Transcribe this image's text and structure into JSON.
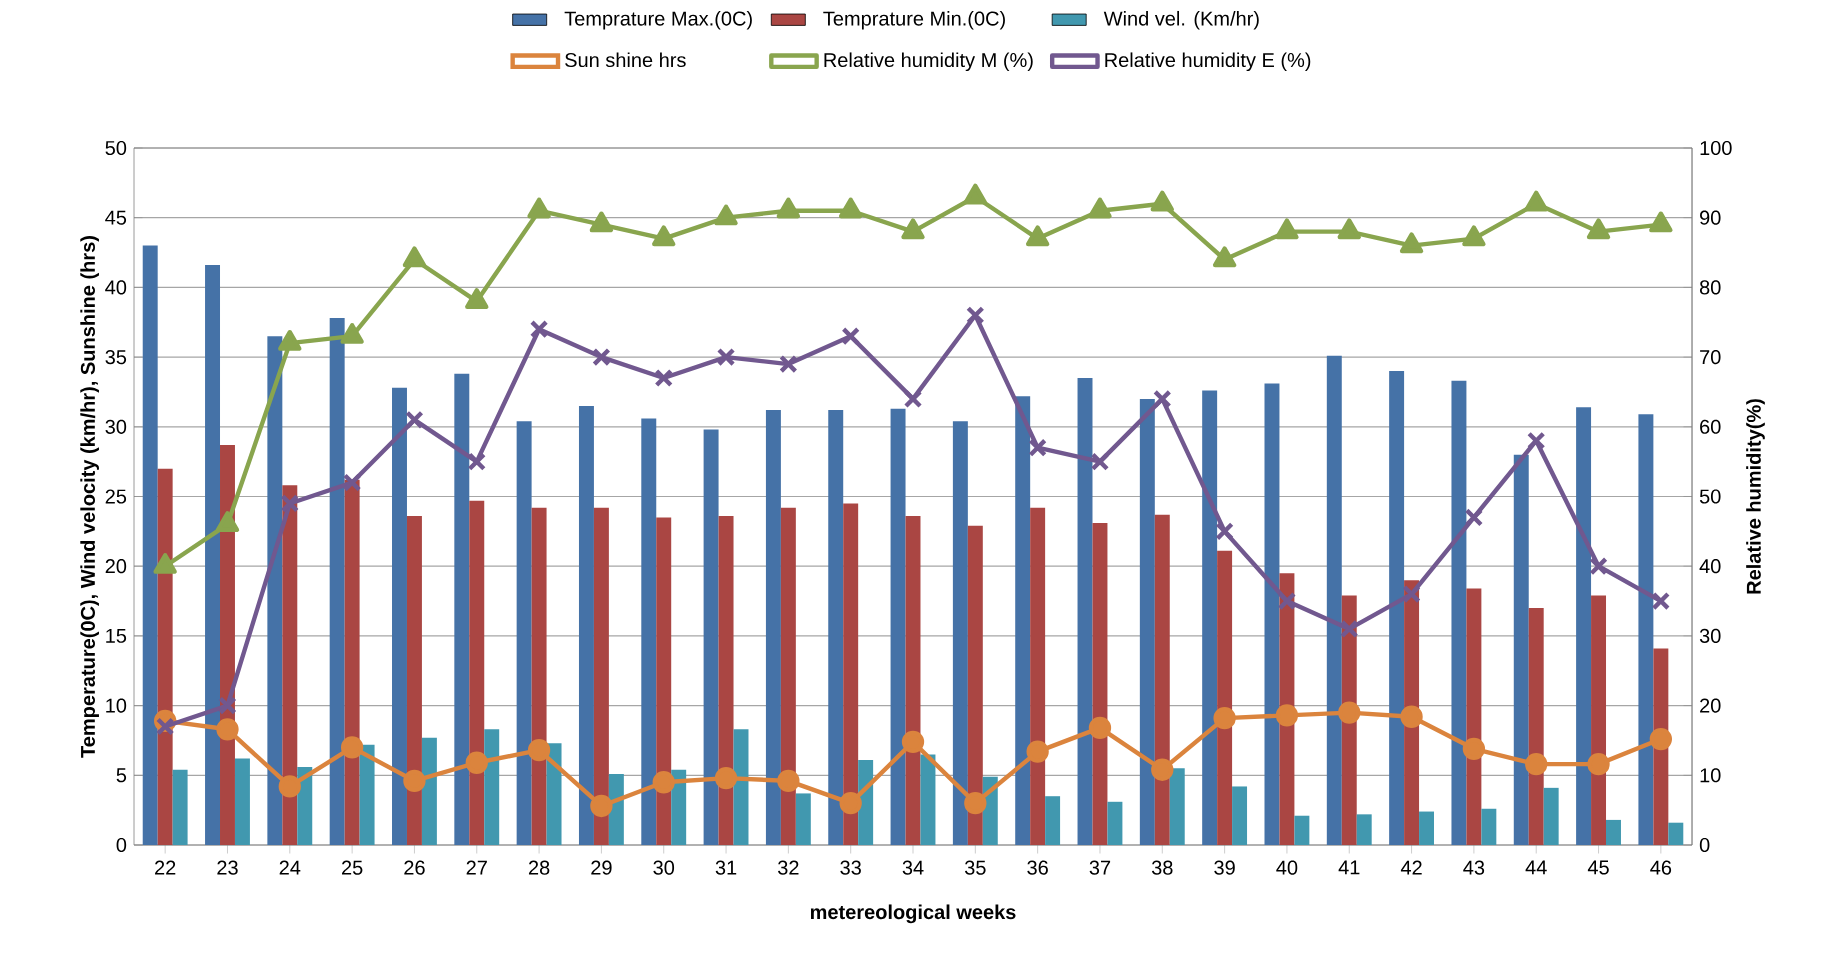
{
  "chart_data": {
    "type": "bar",
    "xlabel": "metereological weeks",
    "ylabel": "Temperature(0C), Wind velocity (km/hr), Sunshine (hrs)",
    "y2label": "Relative humidity(%)",
    "categories": [
      "22",
      "23",
      "24",
      "25",
      "26",
      "27",
      "28",
      "29",
      "30",
      "31",
      "32",
      "33",
      "34",
      "35",
      "36",
      "37",
      "38",
      "39",
      "40",
      "41",
      "42",
      "43",
      "44",
      "45",
      "46"
    ],
    "series": [
      {
        "name": "Temprature Max.(0C)",
        "color": "#4572a7",
        "values": [
          43,
          41.6,
          36.5,
          37.8,
          32.8,
          33.8,
          30.4,
          31.5,
          30.6,
          29.8,
          31.2,
          31.2,
          31.3,
          30.4,
          32.2,
          33.5,
          32.0,
          32.6,
          33.1,
          35.1,
          34.0,
          33.3,
          28.0,
          31.4,
          30.9
        ]
      },
      {
        "name": "Temprature Min.(0C)",
        "color": "#aa4643",
        "values": [
          27.0,
          28.7,
          25.8,
          26.2,
          23.6,
          24.7,
          24.2,
          24.2,
          23.5,
          23.6,
          24.2,
          24.5,
          23.6,
          22.9,
          24.2,
          23.1,
          23.7,
          21.1,
          19.5,
          17.9,
          19.0,
          18.4,
          17.0,
          17.9,
          14.1
        ]
      },
      {
        "name": "Wind vel. (Km/hr)",
        "color": "#4198af",
        "values": [
          5.4,
          6.2,
          5.6,
          7.2,
          7.7,
          8.3,
          7.3,
          5.1,
          5.4,
          8.3,
          3.7,
          6.1,
          6.5,
          4.9,
          3.5,
          3.1,
          5.5,
          4.2,
          2.1,
          2.2,
          2.4,
          2.6,
          4.1,
          1.8,
          1.6
        ]
      },
      {
        "name": "Sun shine hrs",
        "type": "line",
        "marker": "circle",
        "color": "#db843d",
        "values": [
          8.9,
          8.3,
          4.2,
          7.0,
          4.6,
          5.9,
          6.8,
          2.8,
          4.5,
          4.8,
          4.6,
          3.0,
          7.4,
          3.0,
          6.7,
          8.4,
          5.4,
          9.1,
          9.3,
          9.5,
          9.2,
          6.9,
          5.8,
          5.8,
          7.6
        ]
      },
      {
        "name": "Relative humidity M (%)",
        "type": "line",
        "marker": "triangle",
        "axis": "y2",
        "color": "#89a54e",
        "values": [
          40,
          46,
          72,
          73,
          84,
          78,
          91,
          89,
          87,
          90,
          91,
          91,
          88,
          93,
          87,
          91,
          92,
          84,
          88,
          88,
          86,
          87,
          92,
          88,
          89
        ]
      },
      {
        "name": "Relative humidity E (%)",
        "type": "line",
        "marker": "cross",
        "axis": "y2",
        "color": "#71588f",
        "values": [
          17,
          20,
          49,
          52,
          61,
          55,
          74,
          70,
          67,
          70,
          69,
          73,
          64,
          76,
          57,
          55,
          64,
          45,
          35,
          31,
          36,
          47,
          58,
          40,
          35
        ]
      }
    ],
    "ylim": [
      0,
      50
    ],
    "yticks": [
      0,
      5,
      10,
      15,
      20,
      25,
      30,
      35,
      40,
      45,
      50
    ],
    "y2lim": [
      0,
      100
    ],
    "y2ticks": [
      0,
      10,
      20,
      30,
      40,
      50,
      60,
      70,
      80,
      90,
      100
    ],
    "grid": "y",
    "legend": "top"
  }
}
